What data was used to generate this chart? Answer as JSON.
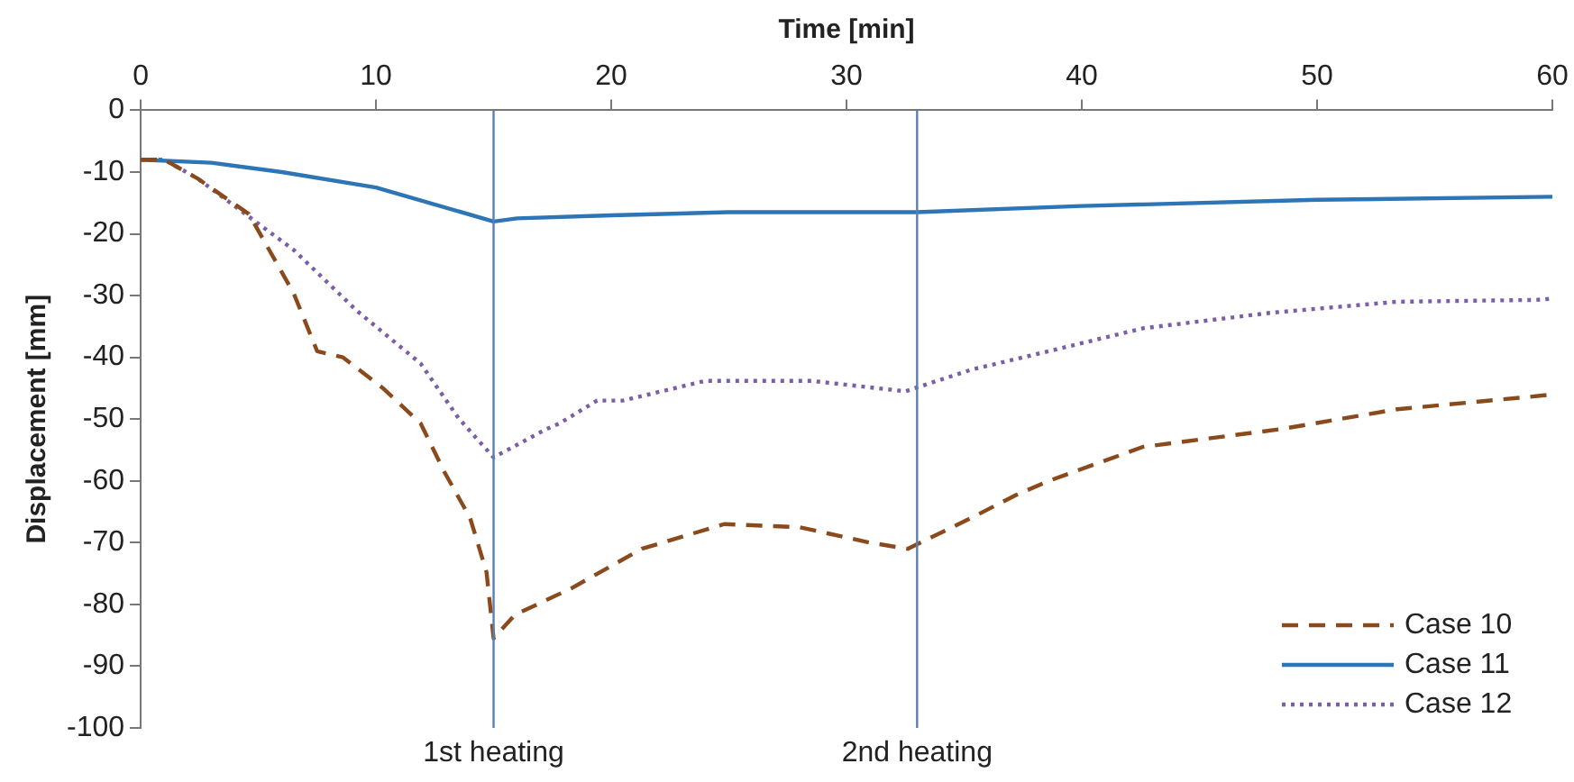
{
  "chart_data": {
    "type": "line",
    "xlabel": "Time [min]",
    "ylabel": "Displacement [mm]",
    "xlim": [
      0,
      60
    ],
    "xticks": [
      0,
      10,
      20,
      30,
      40,
      50,
      60
    ],
    "ylim": [
      -100,
      0
    ],
    "yticks": [
      0,
      -10,
      -20,
      -30,
      -40,
      -50,
      -60,
      -70,
      -80,
      -90,
      -100
    ],
    "grid": false,
    "legend": "bottom right",
    "marker": "none",
    "ref_lines": [
      {
        "axis": "x",
        "value": 15,
        "label": "1st heating",
        "color": "#5b7fb0"
      },
      {
        "axis": "x",
        "value": 33,
        "label": "2nd heating",
        "color": "#5b7fb0"
      }
    ],
    "series": [
      {
        "name": "Case 10",
        "color": "#8b4a1c",
        "line_style": "dashed",
        "x": [
          0,
          1,
          2.4,
          4.6,
          6.5,
          7.5,
          8.6,
          10.3,
          11.9,
          12.9,
          14,
          14.7,
          15,
          15.9,
          18.3,
          21.3,
          24.8,
          28,
          31,
          32.6,
          35.3,
          37.2,
          38.6,
          42.6,
          48.5,
          53.4,
          59,
          60
        ],
        "values": [
          -8,
          -8,
          -11,
          -16.8,
          -29.6,
          -39,
          -40,
          -45,
          -50.7,
          -58.5,
          -66,
          -74.8,
          -85.5,
          -81.7,
          -77.4,
          -71,
          -67,
          -67.5,
          -70,
          -71,
          -66,
          -62.3,
          -60,
          -54.5,
          -51.6,
          -48.4,
          -46.4,
          -46
        ]
      },
      {
        "name": "Case 11",
        "color": "#2e75b6",
        "line_style": "solid",
        "x": [
          0,
          3,
          6,
          10,
          15,
          16,
          20,
          25,
          33,
          40,
          50,
          60
        ],
        "values": [
          -8,
          -8.5,
          -10,
          -12.5,
          -18,
          -17.5,
          -17,
          -16.5,
          -16.5,
          -15.5,
          -14.5,
          -14
        ]
      },
      {
        "name": "Case 12",
        "color": "#7b5ea7",
        "line_style": "dotted",
        "x": [
          0,
          1,
          2.4,
          6.5,
          9.2,
          11.9,
          13.5,
          15,
          17.2,
          17.8,
          19.4,
          20.5,
          24,
          28.5,
          32.5,
          35.3,
          38.6,
          42.6,
          48,
          53.4,
          59.3,
          60
        ],
        "values": [
          -8,
          -8,
          -11,
          -22.6,
          -32.5,
          -41,
          -49.8,
          -56.2,
          -51.7,
          -50.7,
          -47,
          -47,
          -43.8,
          -43.8,
          -45.5,
          -42,
          -39,
          -35.3,
          -32.8,
          -31,
          -30.7,
          -30.5
        ]
      }
    ]
  }
}
